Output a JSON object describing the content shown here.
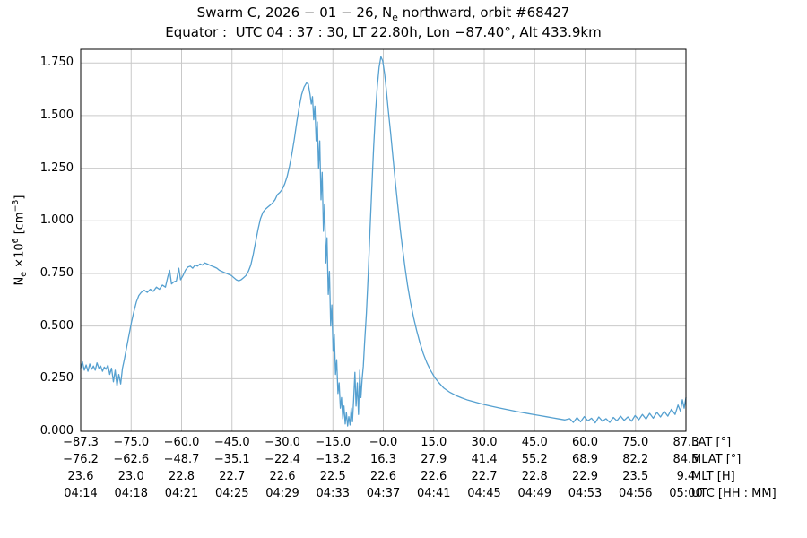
{
  "header": {
    "title_part1": "Swarm C, 2026 − 01 − 26, N",
    "title_sub": "e",
    "title_part2": " northward, orbit #68427",
    "subtitle": "Equator :  UTC 04 : 37 : 30, LT 22.80h, Lon −87.40°, Alt 433.9km"
  },
  "ylabel": {
    "n": "N",
    "sub": "e",
    "times": " ×10",
    "exp": "6",
    "unit_open": " [cm",
    "unit_exp": "−3",
    "unit_close": "]"
  },
  "chart_data": {
    "type": "line",
    "title": "Swarm C, 2026-01-26, Ne northward, orbit #68427",
    "subtitle": "Equator: UTC 04:37:30, LT 22.80h, Lon -87.40°, Alt 433.9km",
    "ylabel": "Ne ×10^6 [cm^-3]",
    "ylim": [
      0,
      1.815
    ],
    "yticks": [
      "0.000",
      "0.250",
      "0.500",
      "0.750",
      "1.000",
      "1.250",
      "1.500",
      "1.750"
    ],
    "grid": true,
    "grid_color": "#c9c9c9",
    "line_color": "#55a0d0",
    "legend_position": "none",
    "x_note": "x values are fractional positions along the time axis from UTC 04:14 (0) to UTC 05:00 (1)",
    "x_axes": [
      {
        "label": "LAT [°]",
        "ticks": [
          "−87.3",
          "−75.0",
          "−60.0",
          "−45.0",
          "−30.0",
          "−15.0",
          "−0.0",
          "15.0",
          "30.0",
          "45.0",
          "60.0",
          "75.0",
          "87.3"
        ]
      },
      {
        "label": "MLAT [°]",
        "ticks": [
          "−76.2",
          "−62.6",
          "−48.7",
          "−35.1",
          "−22.4",
          "−13.2",
          "16.3",
          "27.9",
          "41.4",
          "55.2",
          "68.9",
          "82.2",
          "84.5"
        ]
      },
      {
        "label": "MLT [H]",
        "ticks": [
          "23.6",
          "23.0",
          "22.8",
          "22.7",
          "22.6",
          "22.5",
          "22.6",
          "22.6",
          "22.7",
          "22.8",
          "22.9",
          "23.5",
          "9.4"
        ]
      },
      {
        "label": "UTC [HH : MM]",
        "ticks": [
          "04:14",
          "04:18",
          "04:21",
          "04:25",
          "04:29",
          "04:33",
          "04:37",
          "04:41",
          "04:45",
          "04:49",
          "04:53",
          "04:56",
          "05:00"
        ]
      }
    ],
    "series": [
      {
        "name": "Ne",
        "x": [
          0.0,
          0.003,
          0.006,
          0.009,
          0.012,
          0.015,
          0.018,
          0.021,
          0.024,
          0.027,
          0.03,
          0.033,
          0.036,
          0.039,
          0.042,
          0.045,
          0.048,
          0.051,
          0.054,
          0.057,
          0.06,
          0.063,
          0.066,
          0.069,
          0.072,
          0.076,
          0.08,
          0.084,
          0.088,
          0.092,
          0.096,
          0.1,
          0.105,
          0.11,
          0.115,
          0.12,
          0.125,
          0.13,
          0.135,
          0.14,
          0.144,
          0.147,
          0.15,
          0.154,
          0.158,
          0.162,
          0.165,
          0.169,
          0.173,
          0.177,
          0.181,
          0.185,
          0.189,
          0.193,
          0.197,
          0.201,
          0.205,
          0.209,
          0.213,
          0.217,
          0.221,
          0.225,
          0.229,
          0.233,
          0.237,
          0.241,
          0.245,
          0.249,
          0.253,
          0.257,
          0.261,
          0.265,
          0.269,
          0.273,
          0.277,
          0.281,
          0.285,
          0.289,
          0.293,
          0.297,
          0.301,
          0.305,
          0.309,
          0.313,
          0.317,
          0.321,
          0.325,
          0.329,
          0.333,
          0.337,
          0.341,
          0.345,
          0.349,
          0.353,
          0.357,
          0.361,
          0.365,
          0.369,
          0.373,
          0.376,
          0.379,
          0.381,
          0.383,
          0.385,
          0.387,
          0.389,
          0.391,
          0.393,
          0.395,
          0.397,
          0.399,
          0.401,
          0.403,
          0.405,
          0.407,
          0.409,
          0.411,
          0.413,
          0.415,
          0.417,
          0.419,
          0.421,
          0.423,
          0.425,
          0.427,
          0.429,
          0.431,
          0.433,
          0.435,
          0.437,
          0.439,
          0.441,
          0.443,
          0.445,
          0.447,
          0.449,
          0.451,
          0.453,
          0.455,
          0.457,
          0.459,
          0.461,
          0.463,
          0.465,
          0.467,
          0.469,
          0.472,
          0.475,
          0.478,
          0.481,
          0.484,
          0.487,
          0.49,
          0.493,
          0.496,
          0.499,
          0.502,
          0.505,
          0.508,
          0.512,
          0.516,
          0.52,
          0.524,
          0.528,
          0.532,
          0.536,
          0.54,
          0.545,
          0.55,
          0.555,
          0.56,
          0.566,
          0.572,
          0.578,
          0.585,
          0.592,
          0.6,
          0.61,
          0.62,
          0.63,
          0.64,
          0.65,
          0.66,
          0.67,
          0.68,
          0.69,
          0.7,
          0.71,
          0.72,
          0.73,
          0.74,
          0.75,
          0.76,
          0.77,
          0.78,
          0.79,
          0.8,
          0.808,
          0.814,
          0.82,
          0.826,
          0.832,
          0.838,
          0.844,
          0.85,
          0.856,
          0.862,
          0.868,
          0.874,
          0.88,
          0.886,
          0.892,
          0.898,
          0.904,
          0.91,
          0.916,
          0.922,
          0.928,
          0.934,
          0.94,
          0.946,
          0.952,
          0.958,
          0.964,
          0.97,
          0.976,
          0.982,
          0.987,
          0.991,
          0.994,
          0.997,
          1.0
        ],
        "y": [
          0.3,
          0.33,
          0.29,
          0.315,
          0.285,
          0.32,
          0.295,
          0.31,
          0.29,
          0.325,
          0.3,
          0.31,
          0.285,
          0.305,
          0.295,
          0.315,
          0.27,
          0.3,
          0.235,
          0.29,
          0.215,
          0.27,
          0.225,
          0.3,
          0.34,
          0.4,
          0.46,
          0.52,
          0.57,
          0.615,
          0.645,
          0.66,
          0.67,
          0.66,
          0.675,
          0.665,
          0.685,
          0.675,
          0.695,
          0.685,
          0.735,
          0.765,
          0.7,
          0.71,
          0.715,
          0.775,
          0.72,
          0.74,
          0.765,
          0.78,
          0.785,
          0.775,
          0.79,
          0.785,
          0.795,
          0.79,
          0.8,
          0.795,
          0.79,
          0.785,
          0.78,
          0.775,
          0.765,
          0.76,
          0.755,
          0.75,
          0.745,
          0.74,
          0.73,
          0.72,
          0.715,
          0.72,
          0.73,
          0.74,
          0.76,
          0.79,
          0.84,
          0.9,
          0.96,
          1.01,
          1.04,
          1.055,
          1.065,
          1.075,
          1.085,
          1.1,
          1.125,
          1.135,
          1.15,
          1.175,
          1.21,
          1.26,
          1.32,
          1.39,
          1.47,
          1.54,
          1.6,
          1.635,
          1.655,
          1.65,
          1.6,
          1.555,
          1.59,
          1.48,
          1.545,
          1.38,
          1.47,
          1.25,
          1.38,
          1.1,
          1.23,
          0.95,
          1.08,
          0.8,
          0.92,
          0.65,
          0.76,
          0.5,
          0.6,
          0.38,
          0.46,
          0.27,
          0.34,
          0.18,
          0.23,
          0.11,
          0.16,
          0.06,
          0.12,
          0.035,
          0.09,
          0.025,
          0.07,
          0.03,
          0.11,
          0.045,
          0.15,
          0.28,
          0.12,
          0.23,
          0.08,
          0.29,
          0.16,
          0.25,
          0.31,
          0.42,
          0.56,
          0.74,
          0.95,
          1.16,
          1.35,
          1.51,
          1.64,
          1.73,
          1.78,
          1.76,
          1.7,
          1.62,
          1.53,
          1.42,
          1.3,
          1.18,
          1.07,
          0.96,
          0.865,
          0.775,
          0.695,
          0.61,
          0.54,
          0.48,
          0.425,
          0.37,
          0.325,
          0.29,
          0.255,
          0.23,
          0.205,
          0.185,
          0.17,
          0.158,
          0.148,
          0.14,
          0.132,
          0.125,
          0.118,
          0.112,
          0.106,
          0.1,
          0.094,
          0.089,
          0.084,
          0.079,
          0.074,
          0.069,
          0.064,
          0.059,
          0.054,
          0.06,
          0.042,
          0.065,
          0.045,
          0.07,
          0.05,
          0.062,
          0.04,
          0.068,
          0.048,
          0.06,
          0.042,
          0.066,
          0.05,
          0.072,
          0.052,
          0.068,
          0.048,
          0.075,
          0.055,
          0.08,
          0.058,
          0.085,
          0.062,
          0.09,
          0.068,
          0.095,
          0.072,
          0.105,
          0.08,
          0.125,
          0.095,
          0.15,
          0.11,
          0.16
        ]
      }
    ]
  }
}
